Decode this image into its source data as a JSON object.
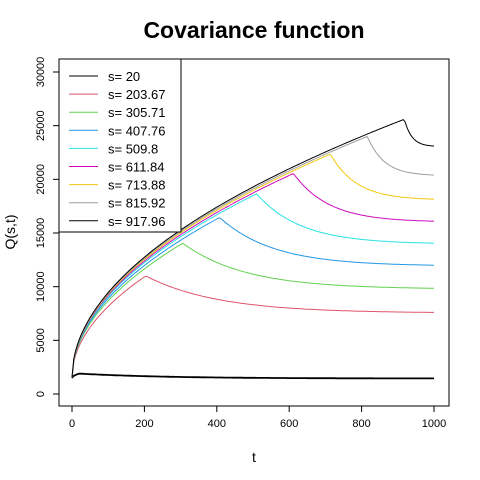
{
  "chart_data": {
    "type": "line",
    "title": "Covariance function",
    "xlabel": "t",
    "ylabel": "Q(s,t)",
    "xlim": [
      0,
      1000
    ],
    "ylim": [
      0,
      30000
    ],
    "x_ticks": [
      "0",
      "200",
      "400",
      "600",
      "800",
      "1000"
    ],
    "y_ticks": [
      "0",
      "5000",
      "10000",
      "15000",
      "20000",
      "25000",
      "30000"
    ],
    "legend_position": "top-left",
    "grid": false,
    "series": [
      {
        "name": "s= 20",
        "color": "#000000",
        "s": 20,
        "peak": 1900,
        "end": 1450
      },
      {
        "name": "s= 203.67",
        "color": "#df536b",
        "s": 203.67,
        "peak": 11000,
        "end": 7600
      },
      {
        "name": "s= 305.71",
        "color": "#61d04f",
        "s": 305.71,
        "peak": 14050,
        "end": 9850
      },
      {
        "name": "s= 407.76",
        "color": "#2297e6",
        "s": 407.76,
        "peak": 16450,
        "end": 12000
      },
      {
        "name": "s= 509.8",
        "color": "#28e2e5",
        "s": 509.8,
        "peak": 18650,
        "end": 14050
      },
      {
        "name": "s= 611.84",
        "color": "#cd0bbc",
        "s": 611.84,
        "peak": 20550,
        "end": 16100
      },
      {
        "name": "s= 713.88",
        "color": "#f5c710",
        "s": 713.88,
        "peak": 22350,
        "end": 18150
      },
      {
        "name": "s= 815.92",
        "color": "#9e9e9e",
        "s": 815.92,
        "peak": 24000,
        "end": 20400
      },
      {
        "name": "s= 917.96",
        "color": "#000000",
        "s": 917.96,
        "peak": 25600,
        "end": 23100
      }
    ]
  }
}
